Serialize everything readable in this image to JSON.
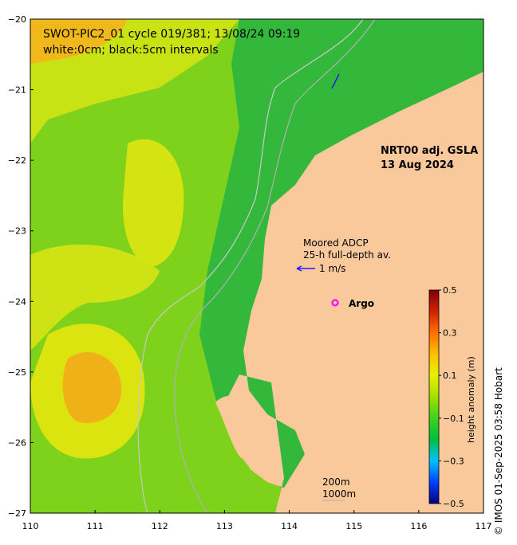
{
  "title": {
    "line1": "SWOT-PIC2_01 cycle 019/381; 13/08/24 09:19",
    "line2": "white:0cm; black:5cm intervals"
  },
  "product": {
    "line1": "NRT00 adj. GSLA",
    "line2": "13 Aug 2024"
  },
  "adcp": {
    "line1": "Moored ADCP",
    "line2": "25-h full-depth av.",
    "scale_label": "1 m/s",
    "arrow_color": "#1a1aff"
  },
  "argo": {
    "label": "Argo",
    "marker_color": "#ff00ff"
  },
  "isobaths": {
    "label1": "200m",
    "label2": "1000m"
  },
  "colorbar": {
    "label": "height anomaly (m)",
    "ticks": [
      "0.5",
      "0.3",
      "0.1",
      "−0.1",
      "−0.3",
      "−0.5"
    ],
    "tick_values": [
      0.5,
      0.3,
      0.1,
      -0.1,
      -0.3,
      -0.5
    ],
    "range": [
      -0.5,
      0.5
    ],
    "colors": [
      "#00007f",
      "#0040ff",
      "#00c0ff",
      "#00c040",
      "#40d020",
      "#a0e000",
      "#e8f000",
      "#ffc000",
      "#ff7000",
      "#d02000",
      "#7f0000"
    ]
  },
  "credit": "© IMOS 01-Sep-2025 03:58 Hobart",
  "axes": {
    "x_ticks": [
      "110",
      "111",
      "112",
      "113",
      "114",
      "115",
      "116",
      "117"
    ],
    "x_values": [
      110,
      111,
      112,
      113,
      114,
      115,
      116,
      117
    ],
    "y_ticks": [
      "−20",
      "−21",
      "−22",
      "−23",
      "−24",
      "−25",
      "−26",
      "−27"
    ],
    "y_values": [
      -20,
      -21,
      -22,
      -23,
      -24,
      -25,
      -26,
      -27
    ],
    "xlim": [
      110,
      117
    ],
    "ylim": [
      -27,
      -20
    ]
  },
  "colors": {
    "land": "#f9c99c",
    "sea_green": "#30b840",
    "sea_lime": "#80d818",
    "sea_yellow": "#d8e410",
    "sea_orange": "#f0a818"
  }
}
